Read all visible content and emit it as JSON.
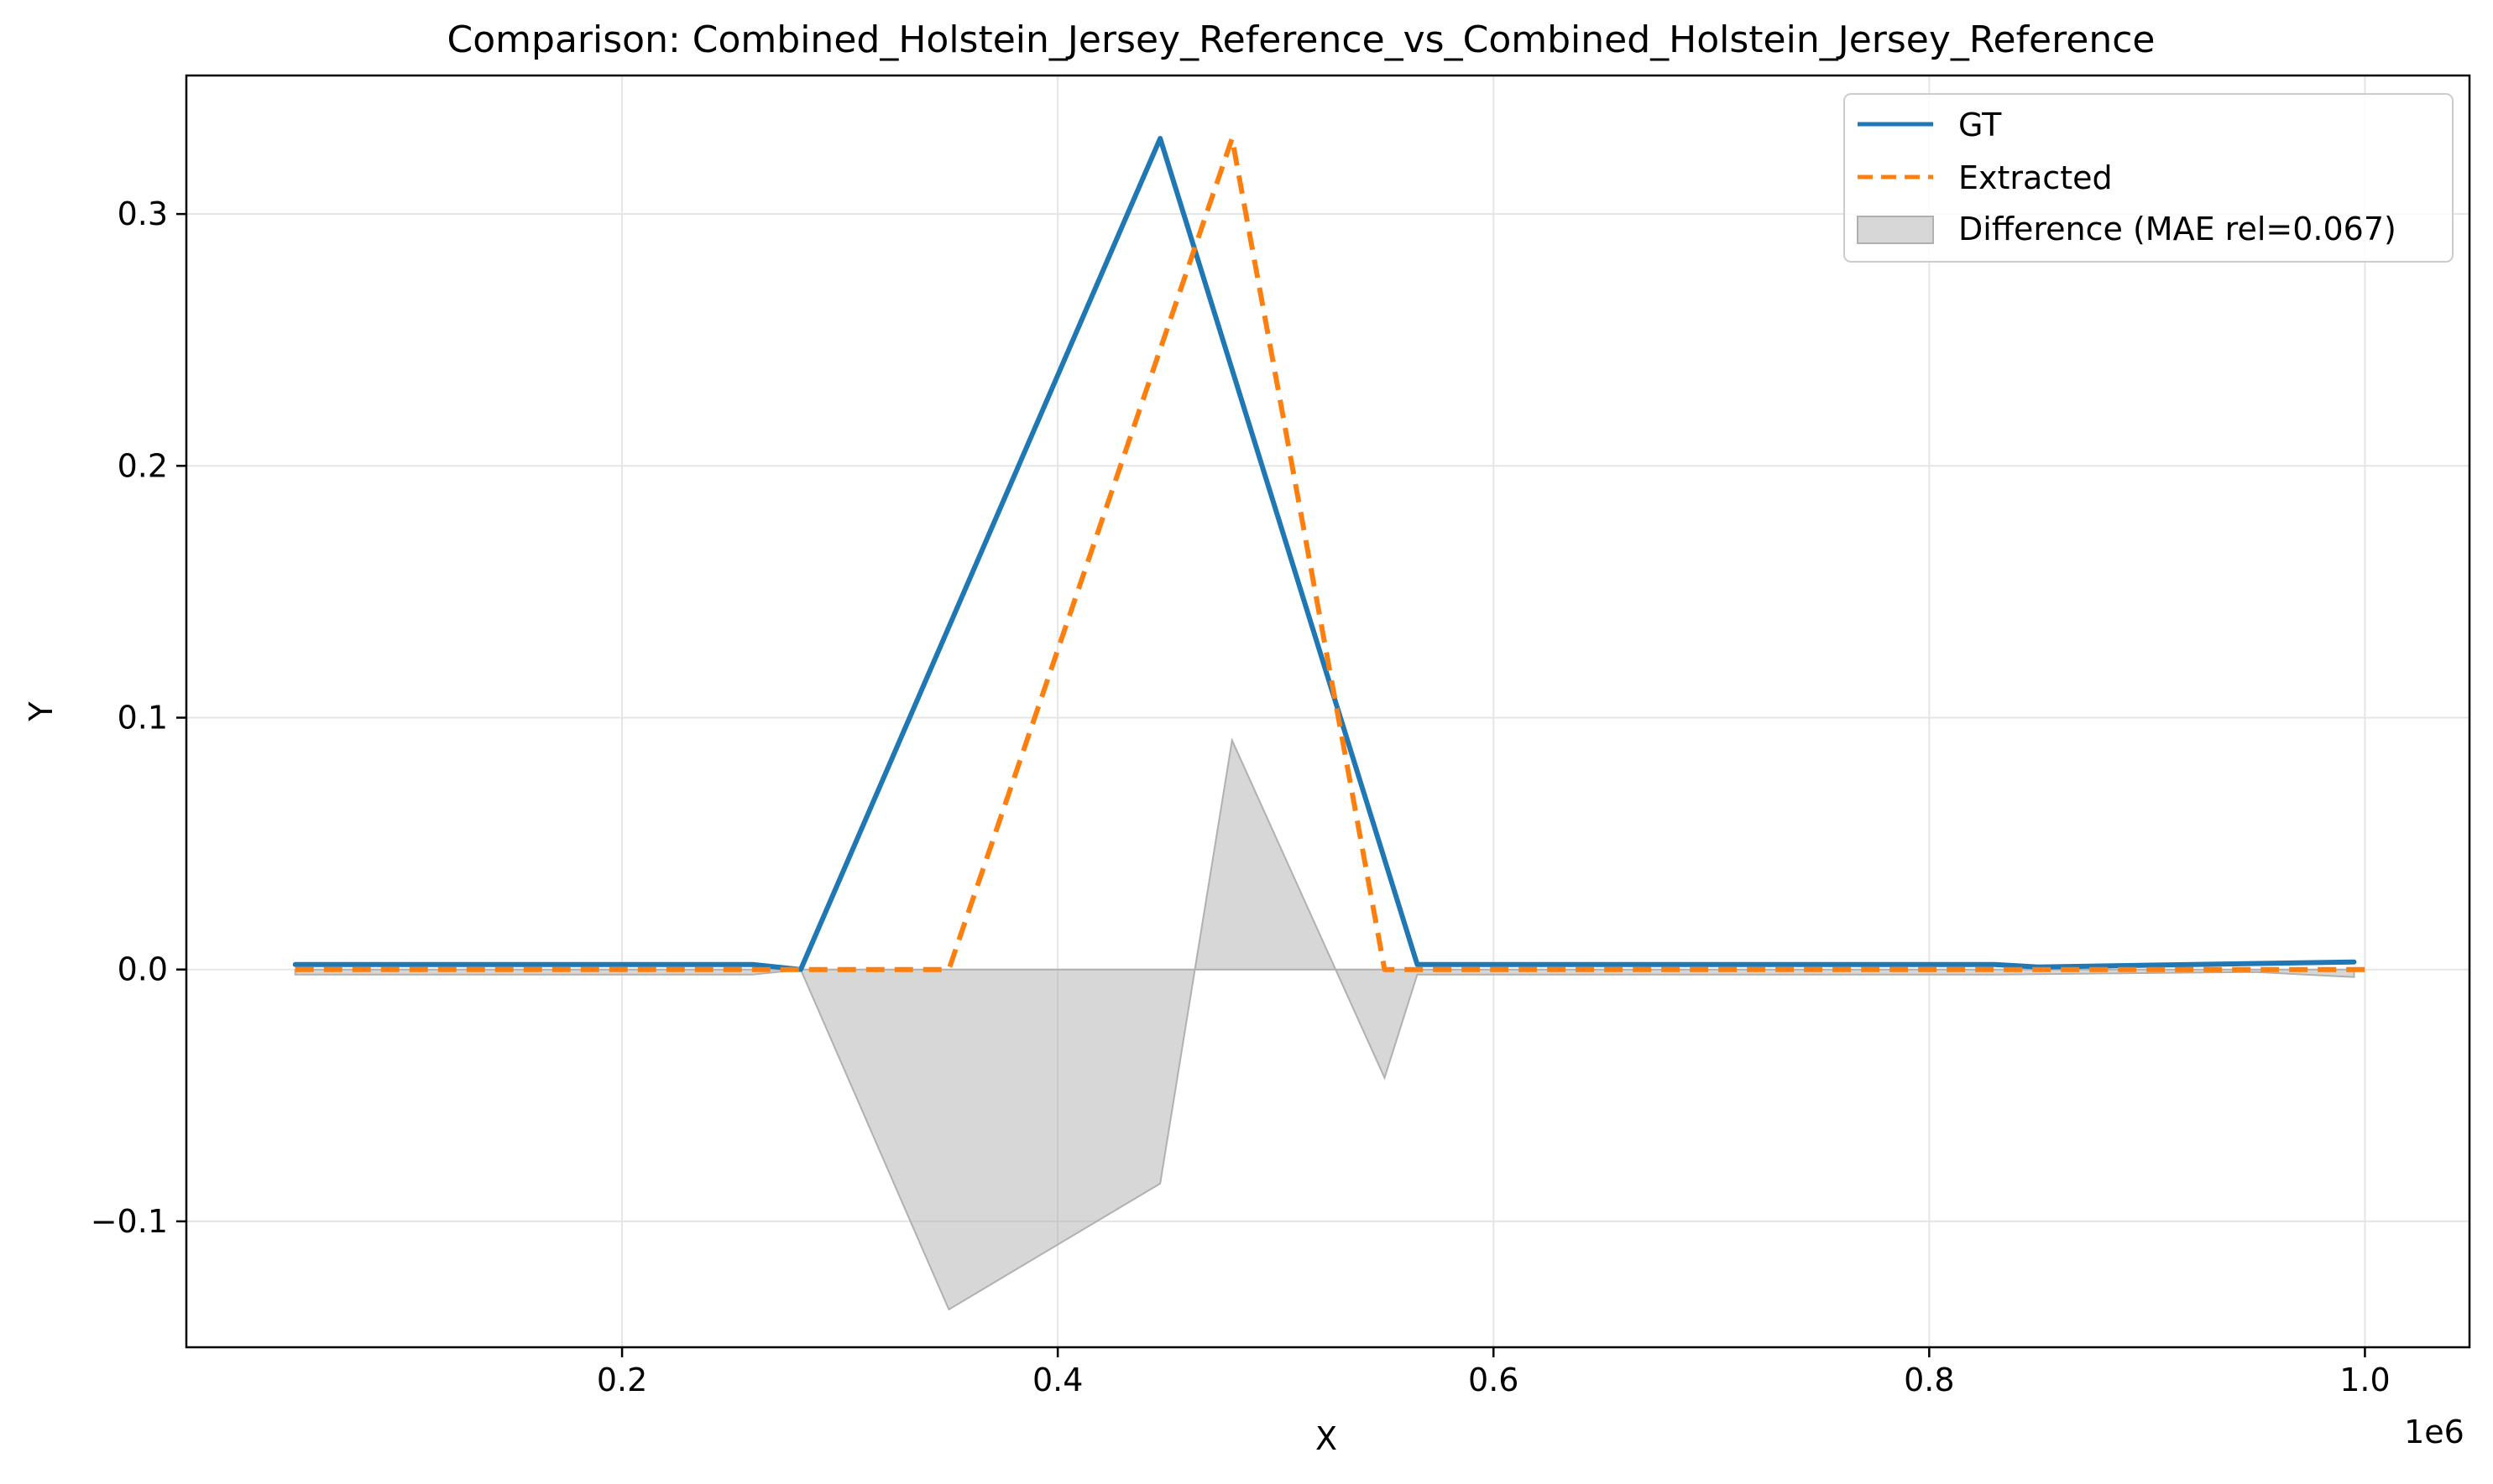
{
  "chart_data": {
    "type": "line",
    "title": "Comparison: Combined_Holstein_Jersey_Reference_vs_Combined_Holstein_Jersey_Reference",
    "xlabel": "X",
    "ylabel": "Y",
    "x_offset_label": "1e6",
    "xlim": [
      0.0,
      1.048
    ],
    "ylim": [
      -0.15,
      0.355
    ],
    "xticks": [
      {
        "value": 0.2,
        "label": "0.2"
      },
      {
        "value": 0.4,
        "label": "0.4"
      },
      {
        "value": 0.6,
        "label": "0.6"
      },
      {
        "value": 0.8,
        "label": "0.8"
      },
      {
        "value": 1.0,
        "label": "1.0"
      }
    ],
    "yticks": [
      {
        "value": -0.1,
        "label": "−0.1"
      },
      {
        "value": 0.0,
        "label": "0.0"
      },
      {
        "value": 0.1,
        "label": "0.1"
      },
      {
        "value": 0.2,
        "label": "0.2"
      },
      {
        "value": 0.3,
        "label": "0.3"
      }
    ],
    "grid": true,
    "legend_position": "top-right",
    "series": [
      {
        "name": "GT",
        "style": "solid",
        "color": "#1f77b4",
        "x": [
          0.05,
          0.26,
          0.282,
          0.447,
          0.565,
          0.83,
          0.85,
          0.995
        ],
        "y": [
          0.002,
          0.002,
          0.0,
          0.33,
          0.002,
          0.002,
          0.001,
          0.003
        ]
      },
      {
        "name": "Extracted",
        "style": "dashed",
        "color": "#ff7f0e",
        "x": [
          0.05,
          0.282,
          0.35,
          0.48,
          0.55,
          1.0
        ],
        "y": [
          0.0,
          0.0,
          0.0,
          0.33,
          0.0,
          0.0
        ]
      }
    ],
    "difference": {
      "name": "Difference (MAE rel=0.067)",
      "color": "#b0b0b0",
      "x": [
        0.05,
        0.26,
        0.282,
        0.35,
        0.447,
        0.48,
        0.55,
        0.565,
        0.83,
        0.95,
        0.995
      ],
      "y": [
        -0.002,
        -0.002,
        0.0,
        -0.135,
        -0.085,
        0.091,
        -0.043,
        -0.002,
        -0.002,
        -0.001,
        -0.003
      ]
    }
  }
}
